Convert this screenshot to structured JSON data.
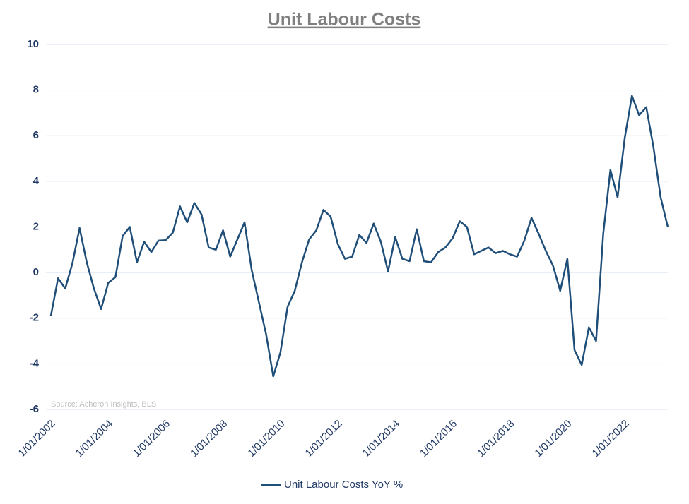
{
  "chart_data": {
    "type": "line",
    "title": "Unit Labour Costs",
    "source": "Source: Acheron Insights, BLS",
    "x": [
      "1/01/2002",
      "1/04/2002",
      "1/07/2002",
      "1/10/2002",
      "1/01/2003",
      "1/04/2003",
      "1/07/2003",
      "1/10/2003",
      "1/01/2004",
      "1/04/2004",
      "1/07/2004",
      "1/10/2004",
      "1/01/2005",
      "1/04/2005",
      "1/07/2005",
      "1/10/2005",
      "1/01/2006",
      "1/04/2006",
      "1/07/2006",
      "1/10/2006",
      "1/01/2007",
      "1/04/2007",
      "1/07/2007",
      "1/10/2007",
      "1/01/2008",
      "1/04/2008",
      "1/07/2008",
      "1/10/2008",
      "1/01/2009",
      "1/04/2009",
      "1/07/2009",
      "1/10/2009",
      "1/01/2010",
      "1/04/2010",
      "1/07/2010",
      "1/10/2010",
      "1/01/2011",
      "1/04/2011",
      "1/07/2011",
      "1/10/2011",
      "1/01/2012",
      "1/04/2012",
      "1/07/2012",
      "1/10/2012",
      "1/01/2013",
      "1/04/2013",
      "1/07/2013",
      "1/10/2013",
      "1/01/2014",
      "1/04/2014",
      "1/07/2014",
      "1/10/2014",
      "1/01/2015",
      "1/04/2015",
      "1/07/2015",
      "1/10/2015",
      "1/01/2016",
      "1/04/2016",
      "1/07/2016",
      "1/10/2016",
      "1/01/2017",
      "1/04/2017",
      "1/07/2017",
      "1/10/2017",
      "1/01/2018",
      "1/04/2018",
      "1/07/2018",
      "1/10/2018",
      "1/01/2019",
      "1/04/2019",
      "1/07/2019",
      "1/10/2019",
      "1/01/2020",
      "1/04/2020",
      "1/07/2020",
      "1/10/2020",
      "1/01/2021",
      "1/04/2021",
      "1/07/2021",
      "1/10/2021",
      "1/01/2022",
      "1/04/2022",
      "1/07/2022",
      "1/10/2022",
      "1/01/2023",
      "1/04/2023",
      "1/07/2023"
    ],
    "xticks": [
      "1/01/2002",
      "1/01/2004",
      "1/01/2006",
      "1/01/2008",
      "1/01/2010",
      "1/01/2012",
      "1/01/2014",
      "1/01/2016",
      "1/01/2018",
      "1/01/2020",
      "1/01/2022"
    ],
    "series": [
      {
        "name": "Unit Labour Costs YoY %",
        "color": "#1f4e79",
        "values": [
          -1.9,
          -0.25,
          -0.7,
          0.4,
          1.95,
          0.45,
          -0.7,
          -1.6,
          -0.45,
          -0.2,
          1.6,
          2.0,
          0.45,
          1.35,
          0.9,
          1.4,
          1.42,
          1.75,
          2.9,
          2.2,
          3.05,
          2.55,
          1.1,
          1.0,
          1.85,
          0.7,
          1.45,
          2.2,
          0.1,
          -1.3,
          -2.7,
          -4.55,
          -3.5,
          -1.5,
          -0.8,
          0.45,
          1.45,
          1.85,
          2.75,
          2.45,
          1.25,
          0.6,
          0.7,
          1.65,
          1.3,
          2.15,
          1.35,
          0.05,
          1.55,
          0.6,
          0.5,
          1.9,
          0.5,
          0.45,
          0.9,
          1.1,
          1.5,
          2.25,
          2.0,
          0.8,
          0.95,
          1.1,
          0.85,
          0.95,
          0.8,
          0.7,
          1.4,
          2.4,
          1.7,
          0.95,
          0.3,
          -0.8,
          0.6,
          -3.4,
          -4.05,
          -2.4,
          -3.0,
          1.7,
          4.5,
          3.3,
          5.9,
          7.75,
          6.9,
          7.25,
          5.5,
          3.3,
          2.0
        ]
      }
    ],
    "ylim": [
      -6,
      10
    ],
    "yticks": [
      -6,
      -4,
      -2,
      0,
      2,
      4,
      6,
      8,
      10
    ],
    "grid": true,
    "legend": "bottom"
  }
}
